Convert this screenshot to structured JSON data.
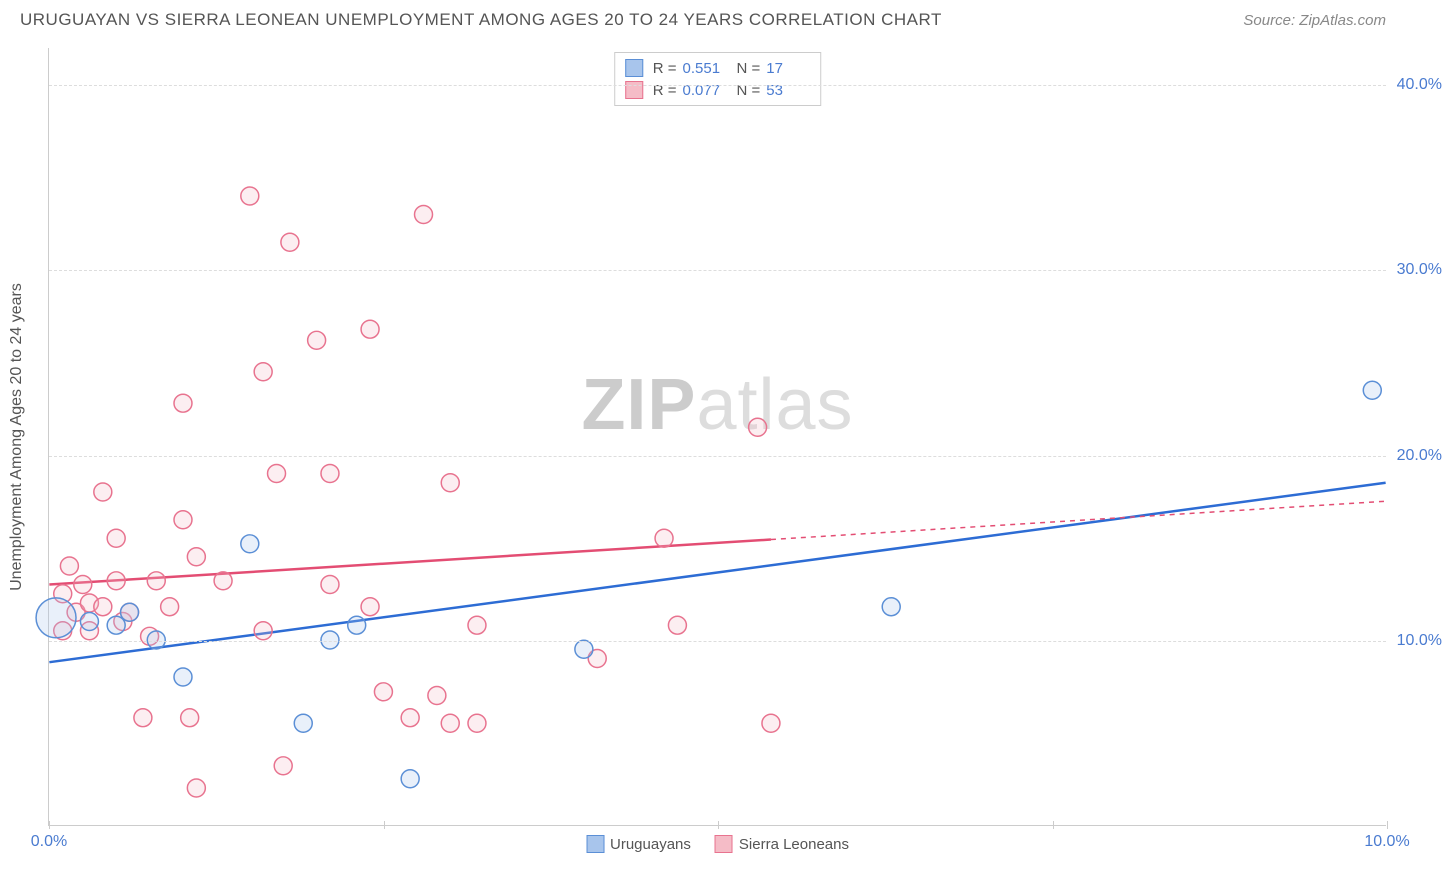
{
  "header": {
    "title": "URUGUAYAN VS SIERRA LEONEAN UNEMPLOYMENT AMONG AGES 20 TO 24 YEARS CORRELATION CHART",
    "source_prefix": "Source: ",
    "source": "ZipAtlas.com"
  },
  "watermark": {
    "part1": "ZIP",
    "part2": "atlas"
  },
  "chart": {
    "type": "scatter",
    "background_color": "#ffffff",
    "grid_color": "#dddddd",
    "axis_color": "#cccccc",
    "tick_label_color": "#4a7bd0",
    "axis_title_color": "#555555",
    "xlim": [
      0,
      10
    ],
    "ylim": [
      0,
      42
    ],
    "x_ticks": [
      0,
      2.5,
      5,
      7.5,
      10
    ],
    "x_tick_labels": [
      "0.0%",
      "",
      "",
      "",
      "10.0%"
    ],
    "y_ticks": [
      10,
      20,
      30,
      40
    ],
    "y_tick_labels": [
      "10.0%",
      "20.0%",
      "30.0%",
      "40.0%"
    ],
    "y_axis_title": "Unemployment Among Ages 20 to 24 years",
    "marker_radius": 9,
    "marker_stroke_width": 1.5,
    "marker_fill_opacity": 0.25,
    "line_width": 2.5,
    "series": [
      {
        "name": "Uruguayans",
        "color_fill": "#a8c5ec",
        "color_stroke": "#5b8fd6",
        "line_color": "#2d6cd4",
        "R": "0.551",
        "N": "17",
        "trend": {
          "x1": 0,
          "y1": 8.8,
          "x2": 10,
          "y2": 18.5,
          "x_solid_end": 10
        },
        "points": [
          {
            "x": 0.05,
            "y": 11.2,
            "r": 20
          },
          {
            "x": 0.3,
            "y": 11.0
          },
          {
            "x": 0.5,
            "y": 10.8
          },
          {
            "x": 0.6,
            "y": 11.5
          },
          {
            "x": 0.8,
            "y": 10.0
          },
          {
            "x": 1.0,
            "y": 8.0
          },
          {
            "x": 1.5,
            "y": 15.2
          },
          {
            "x": 1.9,
            "y": 5.5
          },
          {
            "x": 2.1,
            "y": 10.0
          },
          {
            "x": 2.3,
            "y": 10.8
          },
          {
            "x": 2.7,
            "y": 2.5
          },
          {
            "x": 4.0,
            "y": 9.5
          },
          {
            "x": 6.3,
            "y": 11.8
          },
          {
            "x": 9.9,
            "y": 23.5
          }
        ]
      },
      {
        "name": "Sierra Leoneans",
        "color_fill": "#f5bcc7",
        "color_stroke": "#e8738f",
        "line_color": "#e34d73",
        "R": "0.077",
        "N": "53",
        "trend": {
          "x1": 0,
          "y1": 13.0,
          "x2": 10,
          "y2": 17.5,
          "x_solid_end": 5.4
        },
        "points": [
          {
            "x": 0.1,
            "y": 12.5
          },
          {
            "x": 0.1,
            "y": 10.5
          },
          {
            "x": 0.15,
            "y": 14.0
          },
          {
            "x": 0.2,
            "y": 11.5
          },
          {
            "x": 0.25,
            "y": 13.0
          },
          {
            "x": 0.3,
            "y": 12.0
          },
          {
            "x": 0.3,
            "y": 10.5
          },
          {
            "x": 0.4,
            "y": 11.8
          },
          {
            "x": 0.4,
            "y": 18.0
          },
          {
            "x": 0.5,
            "y": 15.5
          },
          {
            "x": 0.5,
            "y": 13.2
          },
          {
            "x": 0.55,
            "y": 11.0
          },
          {
            "x": 0.6,
            "y": 11.5
          },
          {
            "x": 0.7,
            "y": 5.8
          },
          {
            "x": 0.75,
            "y": 10.2
          },
          {
            "x": 0.8,
            "y": 13.2
          },
          {
            "x": 0.9,
            "y": 11.8
          },
          {
            "x": 1.0,
            "y": 22.8
          },
          {
            "x": 1.0,
            "y": 16.5
          },
          {
            "x": 1.05,
            "y": 5.8
          },
          {
            "x": 1.1,
            "y": 14.5
          },
          {
            "x": 1.1,
            "y": 2.0
          },
          {
            "x": 1.3,
            "y": 13.2
          },
          {
            "x": 1.5,
            "y": 34.0
          },
          {
            "x": 1.6,
            "y": 24.5
          },
          {
            "x": 1.6,
            "y": 10.5
          },
          {
            "x": 1.7,
            "y": 19.0
          },
          {
            "x": 1.75,
            "y": 3.2
          },
          {
            "x": 1.8,
            "y": 31.5
          },
          {
            "x": 2.0,
            "y": 26.2
          },
          {
            "x": 2.1,
            "y": 19.0
          },
          {
            "x": 2.1,
            "y": 13.0
          },
          {
            "x": 2.4,
            "y": 26.8
          },
          {
            "x": 2.4,
            "y": 11.8
          },
          {
            "x": 2.5,
            "y": 7.2
          },
          {
            "x": 2.7,
            "y": 5.8
          },
          {
            "x": 2.8,
            "y": 33.0
          },
          {
            "x": 2.9,
            "y": 7.0
          },
          {
            "x": 3.0,
            "y": 18.5
          },
          {
            "x": 3.0,
            "y": 5.5
          },
          {
            "x": 3.2,
            "y": 10.8
          },
          {
            "x": 3.2,
            "y": 5.5
          },
          {
            "x": 4.1,
            "y": 9.0
          },
          {
            "x": 4.6,
            "y": 15.5
          },
          {
            "x": 4.7,
            "y": 10.8
          },
          {
            "x": 5.3,
            "y": 21.5
          },
          {
            "x": 5.4,
            "y": 5.5
          }
        ]
      }
    ]
  },
  "legend_top": {
    "R_label": "R =",
    "N_label": "N ="
  },
  "legend_bottom": {
    "items": [
      {
        "label": "Uruguayans",
        "fill": "#a8c5ec",
        "stroke": "#5b8fd6"
      },
      {
        "label": "Sierra Leoneans",
        "fill": "#f5bcc7",
        "stroke": "#e8738f"
      }
    ]
  }
}
